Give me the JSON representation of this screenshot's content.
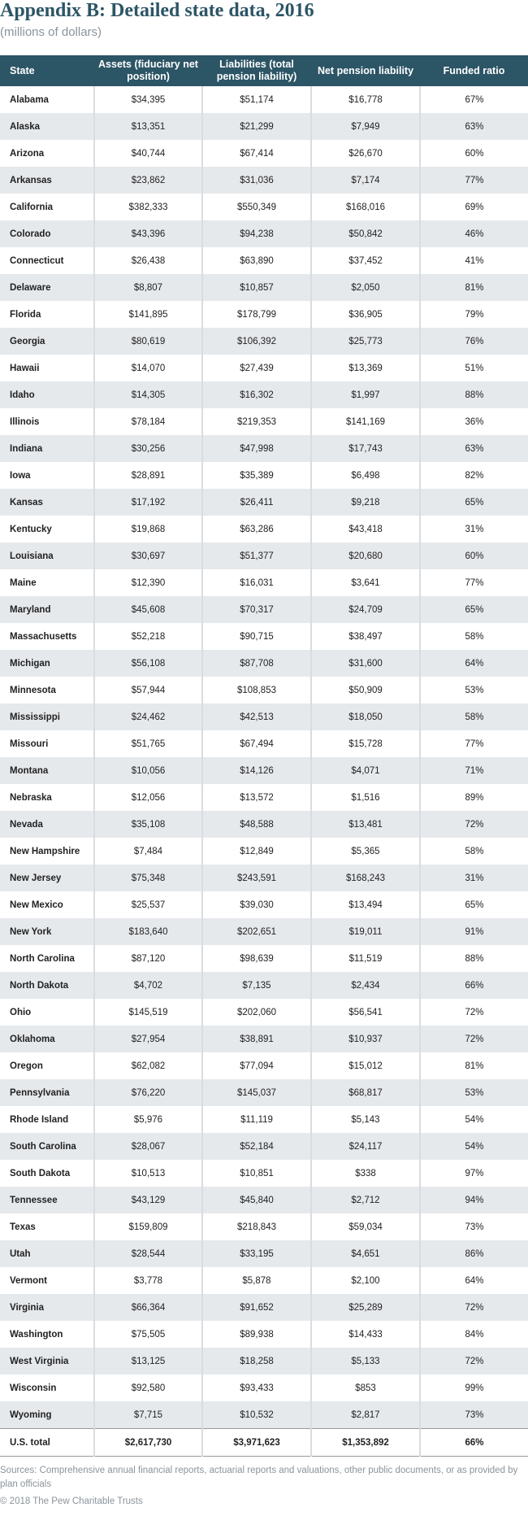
{
  "header": {
    "title": "Appendix B: Detailed state data, 2016",
    "subtitle": "(millions of dollars)"
  },
  "table": {
    "columns": [
      "State",
      "Assets (fiduciary net position)",
      "Liabilities (total pension liability)",
      "Net pension liability",
      "Funded ratio"
    ],
    "rows": [
      [
        "Alabama",
        "$34,395",
        "$51,174",
        "$16,778",
        "67%"
      ],
      [
        "Alaska",
        "$13,351",
        "$21,299",
        "$7,949",
        "63%"
      ],
      [
        "Arizona",
        "$40,744",
        "$67,414",
        "$26,670",
        "60%"
      ],
      [
        "Arkansas",
        "$23,862",
        "$31,036",
        "$7,174",
        "77%"
      ],
      [
        "California",
        "$382,333",
        "$550,349",
        "$168,016",
        "69%"
      ],
      [
        "Colorado",
        "$43,396",
        "$94,238",
        "$50,842",
        "46%"
      ],
      [
        "Connecticut",
        "$26,438",
        "$63,890",
        "$37,452",
        "41%"
      ],
      [
        "Delaware",
        "$8,807",
        "$10,857",
        "$2,050",
        "81%"
      ],
      [
        "Florida",
        "$141,895",
        "$178,799",
        "$36,905",
        "79%"
      ],
      [
        "Georgia",
        "$80,619",
        "$106,392",
        "$25,773",
        "76%"
      ],
      [
        "Hawaii",
        "$14,070",
        "$27,439",
        "$13,369",
        "51%"
      ],
      [
        "Idaho",
        "$14,305",
        "$16,302",
        "$1,997",
        "88%"
      ],
      [
        "Illinois",
        "$78,184",
        "$219,353",
        "$141,169",
        "36%"
      ],
      [
        "Indiana",
        "$30,256",
        "$47,998",
        "$17,743",
        "63%"
      ],
      [
        "Iowa",
        "$28,891",
        "$35,389",
        "$6,498",
        "82%"
      ],
      [
        "Kansas",
        "$17,192",
        "$26,411",
        "$9,218",
        "65%"
      ],
      [
        "Kentucky",
        "$19,868",
        "$63,286",
        "$43,418",
        "31%"
      ],
      [
        "Louisiana",
        "$30,697",
        "$51,377",
        "$20,680",
        "60%"
      ],
      [
        "Maine",
        "$12,390",
        "$16,031",
        "$3,641",
        "77%"
      ],
      [
        "Maryland",
        "$45,608",
        "$70,317",
        "$24,709",
        "65%"
      ],
      [
        "Massachusetts",
        "$52,218",
        "$90,715",
        "$38,497",
        "58%"
      ],
      [
        "Michigan",
        "$56,108",
        "$87,708",
        "$31,600",
        "64%"
      ],
      [
        "Minnesota",
        "$57,944",
        "$108,853",
        "$50,909",
        "53%"
      ],
      [
        "Mississippi",
        "$24,462",
        "$42,513",
        "$18,050",
        "58%"
      ],
      [
        "Missouri",
        "$51,765",
        "$67,494",
        "$15,728",
        "77%"
      ],
      [
        "Montana",
        "$10,056",
        "$14,126",
        "$4,071",
        "71%"
      ],
      [
        "Nebraska",
        "$12,056",
        "$13,572",
        "$1,516",
        "89%"
      ],
      [
        "Nevada",
        "$35,108",
        "$48,588",
        "$13,481",
        "72%"
      ],
      [
        "New Hampshire",
        "$7,484",
        "$12,849",
        "$5,365",
        "58%"
      ],
      [
        "New Jersey",
        "$75,348",
        "$243,591",
        "$168,243",
        "31%"
      ],
      [
        "New Mexico",
        "$25,537",
        "$39,030",
        "$13,494",
        "65%"
      ],
      [
        "New York",
        "$183,640",
        "$202,651",
        "$19,011",
        "91%"
      ],
      [
        "North Carolina",
        "$87,120",
        "$98,639",
        "$11,519",
        "88%"
      ],
      [
        "North Dakota",
        "$4,702",
        "$7,135",
        "$2,434",
        "66%"
      ],
      [
        "Ohio",
        "$145,519",
        "$202,060",
        "$56,541",
        "72%"
      ],
      [
        "Oklahoma",
        "$27,954",
        "$38,891",
        "$10,937",
        "72%"
      ],
      [
        "Oregon",
        "$62,082",
        "$77,094",
        "$15,012",
        "81%"
      ],
      [
        "Pennsylvania",
        "$76,220",
        "$145,037",
        "$68,817",
        "53%"
      ],
      [
        "Rhode Island",
        "$5,976",
        "$11,119",
        "$5,143",
        "54%"
      ],
      [
        "South Carolina",
        "$28,067",
        "$52,184",
        "$24,117",
        "54%"
      ],
      [
        "South Dakota",
        "$10,513",
        "$10,851",
        "$338",
        "97%"
      ],
      [
        "Tennessee",
        "$43,129",
        "$45,840",
        "$2,712",
        "94%"
      ],
      [
        "Texas",
        "$159,809",
        "$218,843",
        "$59,034",
        "73%"
      ],
      [
        "Utah",
        "$28,544",
        "$33,195",
        "$4,651",
        "86%"
      ],
      [
        "Vermont",
        "$3,778",
        "$5,878",
        "$2,100",
        "64%"
      ],
      [
        "Virginia",
        "$66,364",
        "$91,652",
        "$25,289",
        "72%"
      ],
      [
        "Washington",
        "$75,505",
        "$89,938",
        "$14,433",
        "84%"
      ],
      [
        "West Virginia",
        "$13,125",
        "$18,258",
        "$5,133",
        "72%"
      ],
      [
        "Wisconsin",
        "$92,580",
        "$93,433",
        "$853",
        "99%"
      ],
      [
        "Wyoming",
        "$7,715",
        "$10,532",
        "$2,817",
        "73%"
      ]
    ],
    "total": [
      "U.S. total",
      "$2,617,730",
      "$3,971,623",
      "$1,353,892",
      "66%"
    ]
  },
  "footer": {
    "sources": "Sources: Comprehensive annual financial reports, actuarial reports and valuations, other public documents, or as provided by plan officials",
    "copyright": "© 2018 The Pew Charitable Trusts"
  }
}
